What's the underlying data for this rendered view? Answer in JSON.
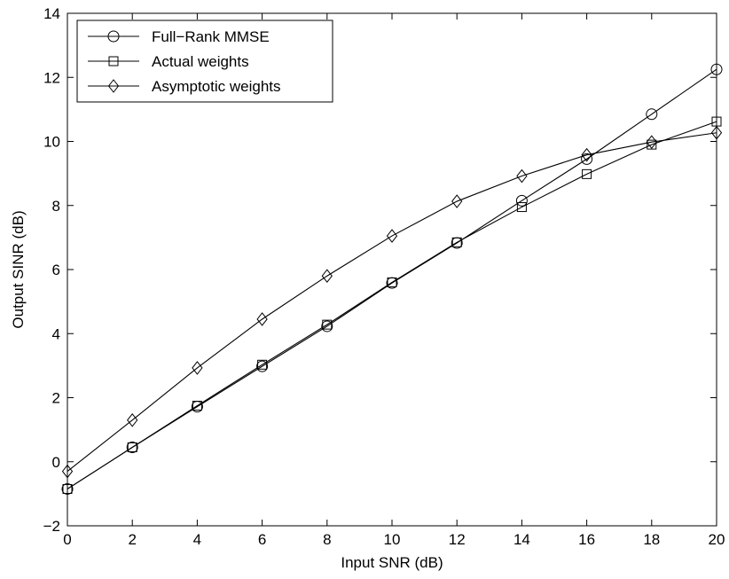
{
  "chart_data": {
    "type": "line",
    "title": "",
    "xlabel": "Input SNR (dB)",
    "ylabel": "Output SINR (dB)",
    "xlim": [
      0,
      20
    ],
    "ylim": [
      -2,
      14
    ],
    "x_ticks": [
      0,
      2,
      4,
      6,
      8,
      10,
      12,
      14,
      16,
      18,
      20
    ],
    "y_ticks": [
      -2,
      0,
      2,
      4,
      6,
      8,
      10,
      12,
      14
    ],
    "x_tick_labels": [
      "0",
      "2",
      "4",
      "6",
      "8",
      "10",
      "12",
      "14",
      "16",
      "18",
      "20"
    ],
    "y_tick_labels": [
      "−2",
      "0",
      "2",
      "4",
      "6",
      "8",
      "10",
      "12",
      "14"
    ],
    "grid": false,
    "legend_position": "top-left",
    "x": [
      0,
      2,
      4,
      6,
      8,
      10,
      12,
      14,
      16,
      18,
      20
    ],
    "series": [
      {
        "name": "Full−Rank MMSE",
        "marker": "circle",
        "color": "#000000",
        "values": [
          -0.85,
          0.45,
          1.72,
          2.98,
          4.23,
          5.58,
          6.83,
          8.15,
          9.45,
          10.85,
          12.25
        ]
      },
      {
        "name": "Actual weights",
        "marker": "square",
        "color": "#000000",
        "values": [
          -0.85,
          0.45,
          1.75,
          3.03,
          4.28,
          5.6,
          6.85,
          7.95,
          8.98,
          9.9,
          10.62
        ]
      },
      {
        "name": "Asymptotic weights",
        "marker": "diamond",
        "color": "#000000",
        "values": [
          -0.3,
          1.3,
          2.93,
          4.45,
          5.8,
          7.05,
          8.13,
          8.92,
          9.58,
          9.98,
          10.27
        ]
      }
    ]
  }
}
